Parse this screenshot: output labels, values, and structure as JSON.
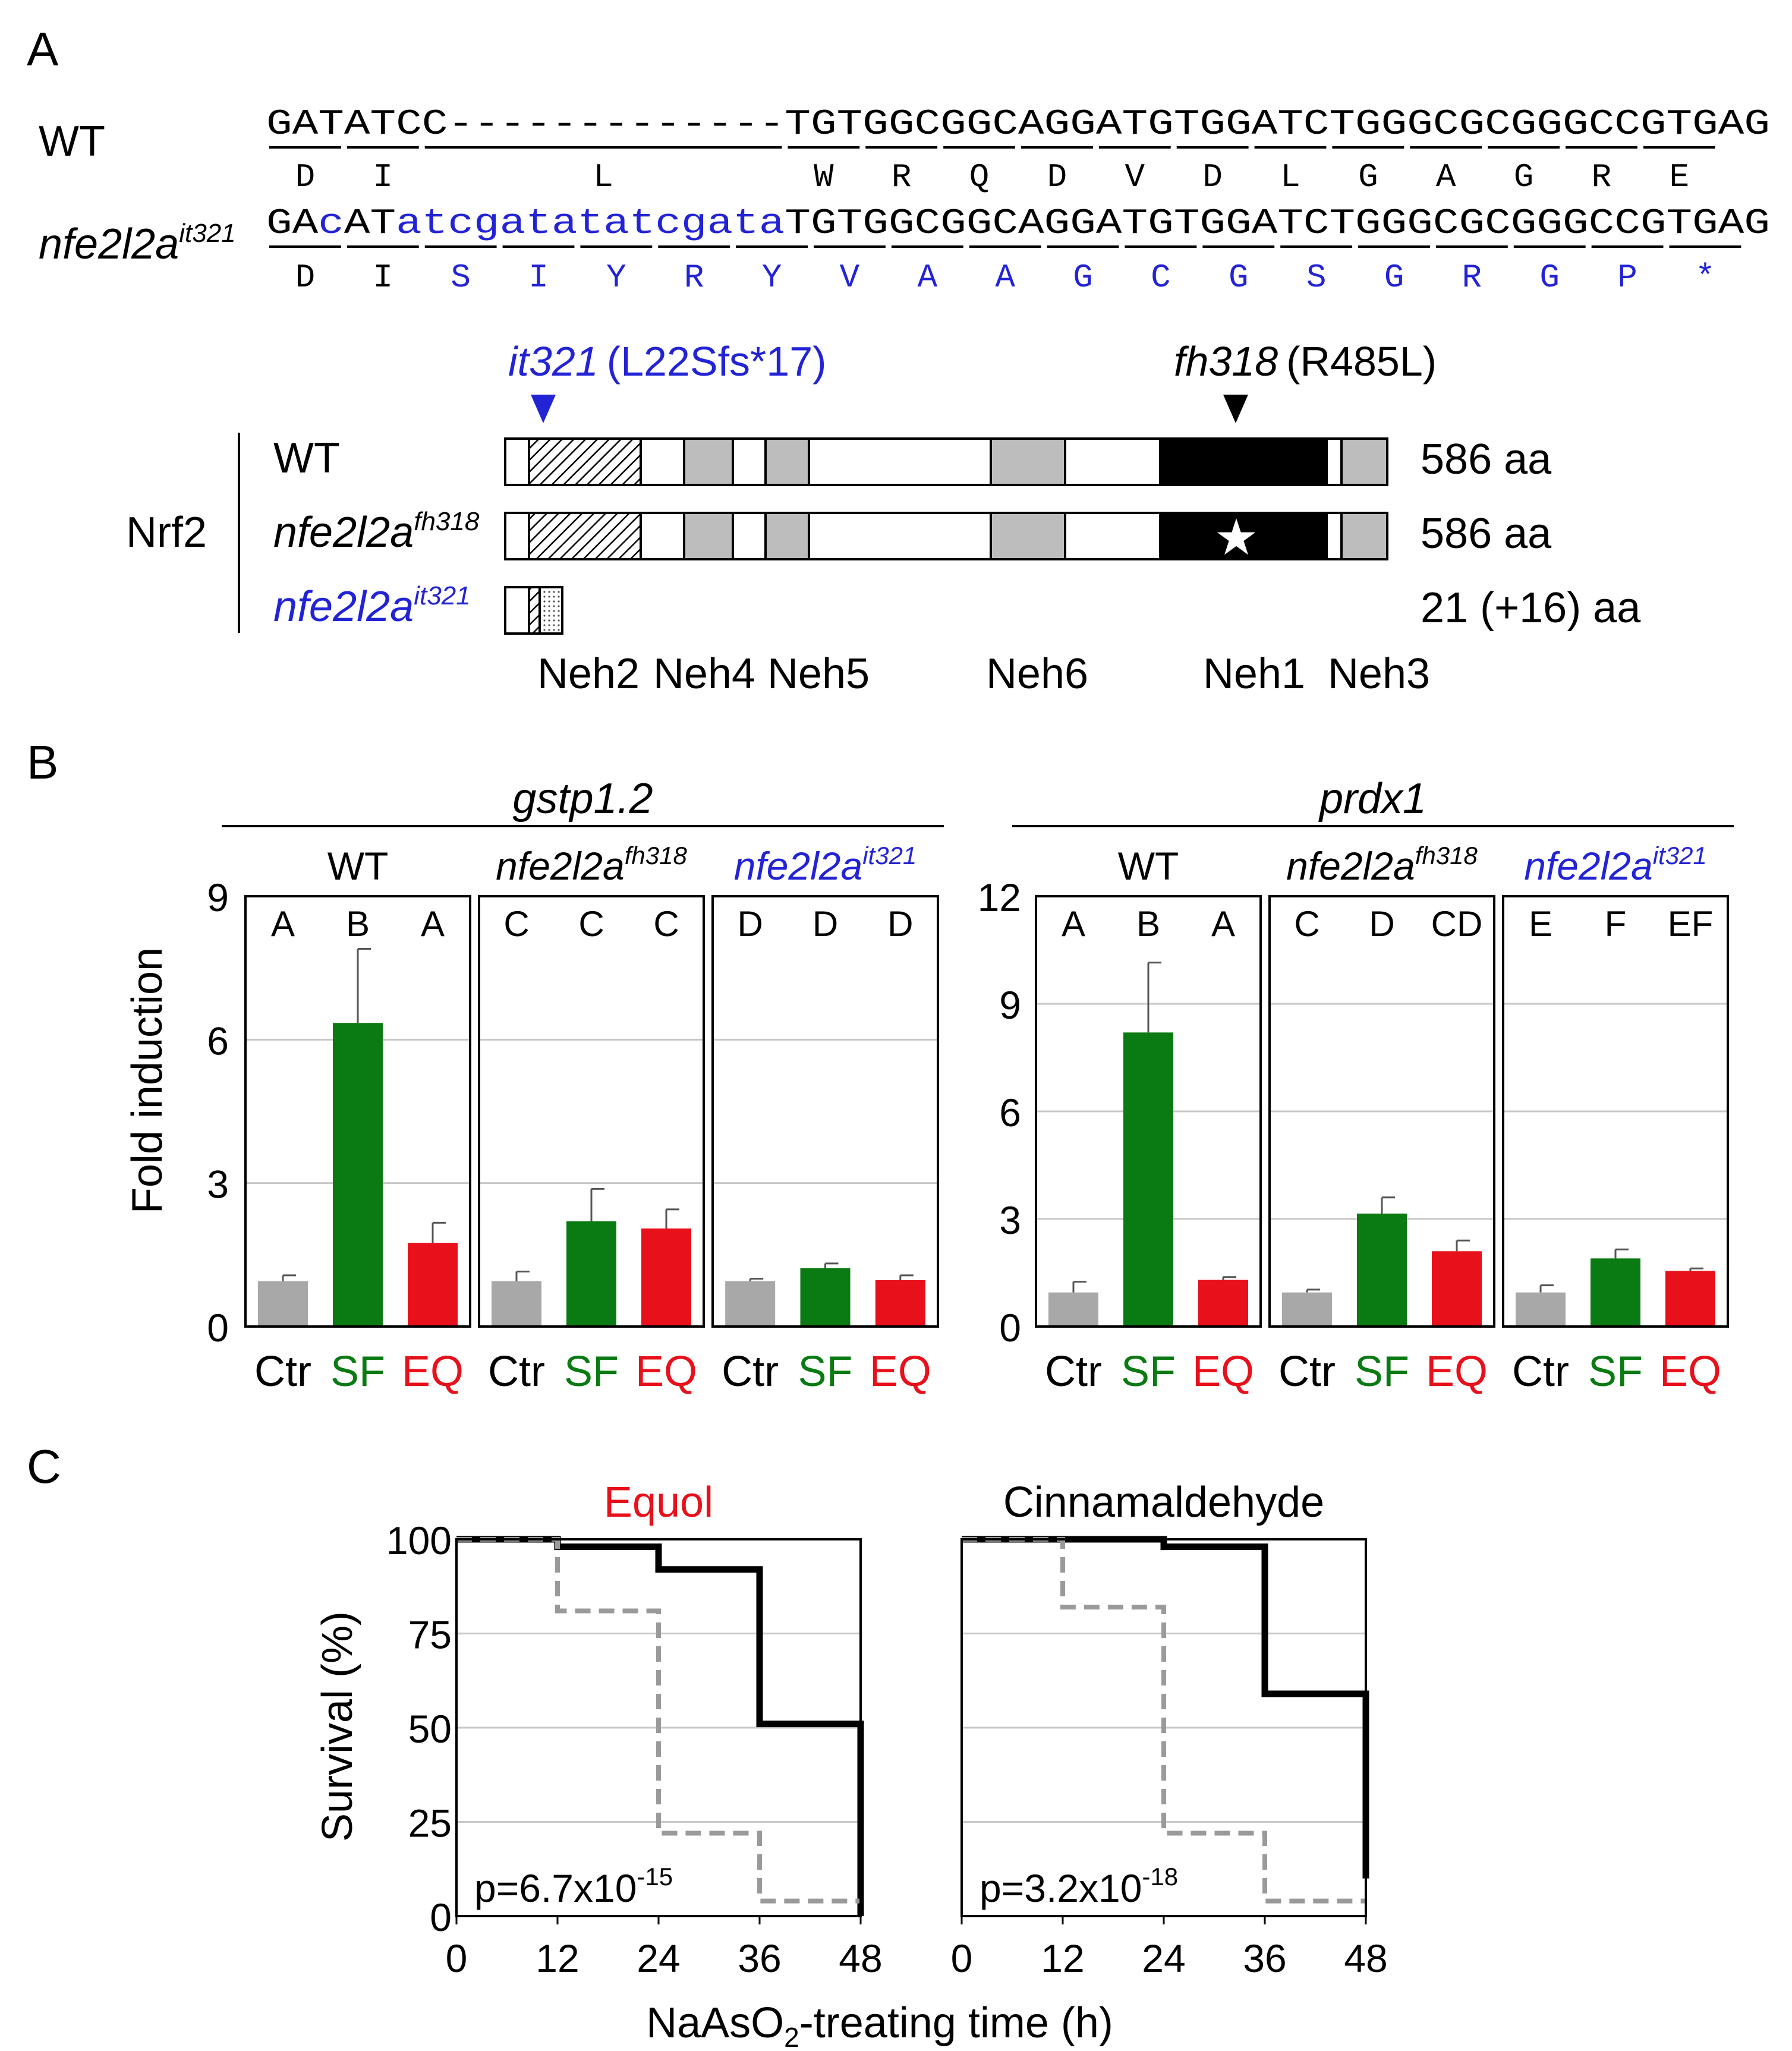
{
  "colors": {
    "black": "#000000",
    "blue": "#2323d6",
    "green": "#0a7a12",
    "red": "#e8101a",
    "gray": "#a8a8a8",
    "domain_gray": "#bdbdbd",
    "grid": "#c8c8c8",
    "dashed": "#9a9a9a"
  },
  "panel_a": {
    "letter": "A",
    "wt_label": "WT",
    "wt_seq_left": "GATATCC",
    "wt_seq_dashes": "-------------",
    "wt_seq_right": "TGTGGCGGCAGGATGTGGATCTGGGCGCGGGCCGTGAG",
    "wt_aa": [
      "D",
      "I",
      "L",
      "W",
      "R",
      "Q",
      "D",
      "V",
      "D",
      "L",
      "G",
      "A",
      "G",
      "R",
      "E"
    ],
    "mut_label_base": "nfe2l2a",
    "mut_label_sup": "it321",
    "mut_seq_parts": [
      {
        "text": "GA",
        "blue": false
      },
      {
        "text": "c",
        "blue": true
      },
      {
        "text": "AT",
        "blue": false
      },
      {
        "text": "atcgatatatcgata",
        "blue": true
      },
      {
        "text": "TGTGGCGGCAGGATGTGGATCTGGGCGCGGGCCGTGAG",
        "blue": false
      }
    ],
    "mut_aa": [
      "D",
      "I",
      "S",
      "I",
      "Y",
      "R",
      "Y",
      "V",
      "A",
      "A",
      "G",
      "C",
      "G",
      "S",
      "G",
      "R",
      "G",
      "P",
      "*"
    ],
    "it321_name": "it321",
    "it321_detail": "(L22Sfs*17)",
    "fh318_name": "fh318",
    "fh318_detail": "(R485L)",
    "nrf2_label": "Nrf2",
    "rows": [
      {
        "label_base": "WT",
        "label_sup": "",
        "length": "586 aa"
      },
      {
        "label_base": "nfe2l2a",
        "label_sup": "fh318",
        "length": "586 aa"
      },
      {
        "label_base": "nfe2l2a",
        "label_sup": "it321",
        "length": "21 (+16) aa"
      }
    ],
    "domains": [
      "Neh2",
      "Neh4",
      "Neh5",
      "Neh6",
      "Neh1",
      "Neh3"
    ],
    "star": "★"
  },
  "panel_b": {
    "letter": "B",
    "ylabel": "Fold induction",
    "group_labels": [
      {
        "base": "WT",
        "sup": ""
      },
      {
        "base": "nfe2l2a",
        "sup": "fh318"
      },
      {
        "base": "nfe2l2a",
        "sup": "it321"
      }
    ],
    "treatments": [
      "Ctr",
      "SF",
      "EQ"
    ]
  },
  "panel_c": {
    "letter": "C",
    "ylabel": "Survival (%)",
    "xlabel_pre": "NaAsO",
    "xlabel_sub": "2",
    "xlabel_post": "-treating time (h)"
  },
  "chart_data": [
    {
      "type": "bar",
      "gene": "gstp1.2",
      "ylabel": "Fold induction",
      "ylim": [
        0,
        9
      ],
      "yticks": [
        0,
        3,
        6,
        9
      ],
      "grid": true,
      "groups": [
        "WT",
        "nfe2l2a fh318",
        "nfe2l2a it321"
      ],
      "categories": [
        "Ctr",
        "SF",
        "EQ"
      ],
      "series": [
        {
          "group": "WT",
          "values": [
            0.95,
            6.35,
            1.75
          ],
          "errors": [
            0.12,
            1.55,
            0.42
          ],
          "letters": [
            "A",
            "B",
            "A"
          ]
        },
        {
          "group": "nfe2l2a fh318",
          "values": [
            0.95,
            2.2,
            2.05
          ],
          "errors": [
            0.2,
            0.68,
            0.4
          ],
          "letters": [
            "C",
            "C",
            "C"
          ]
        },
        {
          "group": "nfe2l2a it321",
          "values": [
            0.95,
            1.22,
            0.97
          ],
          "errors": [
            0.05,
            0.1,
            0.1
          ],
          "letters": [
            "D",
            "D",
            "D"
          ]
        }
      ]
    },
    {
      "type": "bar",
      "gene": "prdx1",
      "ylabel": "Fold induction",
      "ylim": [
        0,
        12
      ],
      "yticks": [
        0,
        3,
        6,
        9,
        12
      ],
      "grid": true,
      "groups": [
        "WT",
        "nfe2l2a fh318",
        "nfe2l2a it321"
      ],
      "categories": [
        "Ctr",
        "SF",
        "EQ"
      ],
      "series": [
        {
          "group": "WT",
          "values": [
            0.95,
            8.2,
            1.3
          ],
          "errors": [
            0.3,
            1.95,
            0.08
          ],
          "letters": [
            "A",
            "B",
            "A"
          ]
        },
        {
          "group": "nfe2l2a fh318",
          "values": [
            0.95,
            3.15,
            2.1
          ],
          "errors": [
            0.08,
            0.45,
            0.3
          ],
          "letters": [
            "C",
            "D",
            "CD"
          ]
        },
        {
          "group": "nfe2l2a it321",
          "values": [
            0.95,
            1.9,
            1.55
          ],
          "errors": [
            0.2,
            0.25,
            0.07
          ],
          "letters": [
            "E",
            "F",
            "EF"
          ]
        }
      ]
    },
    {
      "type": "line",
      "title": "Equol",
      "title_color": "#e8101a",
      "xlabel": "NaAsO2-treating time (h)",
      "ylabel": "Survival (%)",
      "xlim": [
        0,
        48
      ],
      "ylim": [
        0,
        100
      ],
      "xticks": [
        0,
        12,
        24,
        36,
        48
      ],
      "yticks": [
        0,
        25,
        50,
        75,
        100
      ],
      "step": true,
      "annotation": {
        "base": "p=6.7x10",
        "sup": "-15"
      },
      "series": [
        {
          "name": "solid",
          "style": "solid",
          "x": [
            0,
            12,
            24,
            36,
            48
          ],
          "y": [
            100,
            98,
            92,
            51,
            0
          ]
        },
        {
          "name": "dashed",
          "style": "dashed",
          "x": [
            0,
            12,
            24,
            36,
            48
          ],
          "y": [
            100,
            81,
            22,
            4,
            4
          ]
        }
      ]
    },
    {
      "type": "line",
      "title": "Cinnamaldehyde",
      "title_color": "#000000",
      "xlabel": "NaAsO2-treating time (h)",
      "ylabel": "Survival (%)",
      "xlim": [
        0,
        48
      ],
      "ylim": [
        0,
        100
      ],
      "xticks": [
        0,
        12,
        24,
        36,
        48
      ],
      "yticks": [
        0,
        25,
        50,
        75,
        100
      ],
      "step": true,
      "annotation": {
        "base": "p=3.2x10",
        "sup": "-18"
      },
      "series": [
        {
          "name": "solid",
          "style": "solid",
          "x": [
            0,
            12,
            24,
            36,
            48
          ],
          "y": [
            100,
            100,
            98,
            59,
            10
          ]
        },
        {
          "name": "dashed",
          "style": "dashed",
          "x": [
            0,
            12,
            24,
            36,
            48
          ],
          "y": [
            100,
            82,
            22,
            4,
            4
          ]
        }
      ]
    }
  ]
}
